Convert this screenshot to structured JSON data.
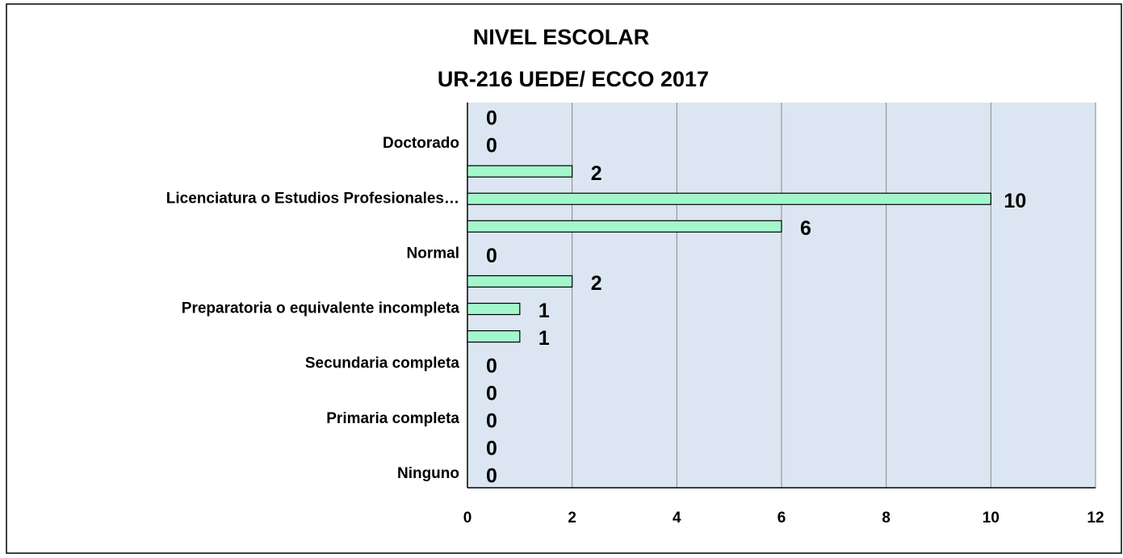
{
  "chart_data": {
    "type": "barh",
    "title": "NIVEL ESCOLAR",
    "subtitle": "UR-216 UEDE/ ECCO 2017",
    "categories": [
      null,
      "Doctorado",
      null,
      "Licenciatura o Estudios Profesionales…",
      null,
      "Normal",
      null,
      "Preparatoria o equivalente incompleta",
      null,
      "Secundaria completa",
      null,
      "Primaria completa",
      null,
      "Ninguno"
    ],
    "values": [
      0,
      0,
      2,
      10,
      6,
      0,
      2,
      1,
      1,
      0,
      0,
      0,
      0,
      0
    ],
    "color": "#a3f7cc",
    "xlim": [
      0,
      12
    ],
    "xticks": [
      0,
      2,
      4,
      6,
      8,
      10,
      12
    ],
    "grid": true
  }
}
